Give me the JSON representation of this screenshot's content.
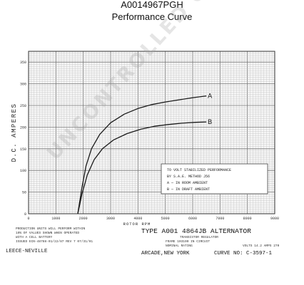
{
  "header": {
    "part_number": "A0014967PGH",
    "subtitle": "Performance Curve"
  },
  "chart_data": {
    "type": "line",
    "title": "",
    "xlabel": "ROTOR RPM",
    "ylabel": "D.C. AMPERES",
    "xlim": [
      0,
      9000
    ],
    "ylim": [
      0,
      375
    ],
    "x_ticks": [
      "0",
      "1000",
      "2000",
      "3000",
      "4000",
      "5000",
      "6000",
      "7000",
      "8000",
      "9000"
    ],
    "y_ticks": [
      "0",
      "50",
      "100",
      "150",
      "200",
      "250",
      "300",
      "350"
    ],
    "grid": true,
    "series": [
      {
        "name": "A",
        "x": [
          1800,
          1950,
          2100,
          2300,
          2600,
          3000,
          3500,
          4000,
          4500,
          5000,
          5500,
          6000,
          6500
        ],
        "y": [
          0,
          60,
          110,
          150,
          183,
          210,
          230,
          243,
          252,
          258,
          263,
          268,
          272
        ]
      },
      {
        "name": "B",
        "x": [
          1800,
          1950,
          2150,
          2400,
          2700,
          3100,
          3600,
          4100,
          4600,
          5100,
          5600,
          6100,
          6500
        ],
        "y": [
          0,
          45,
          90,
          125,
          150,
          170,
          185,
          195,
          202,
          206,
          209,
          211,
          212
        ]
      }
    ],
    "legend_box": [
      "TO VOLT STABILIZED PERFORMANCE",
      "BY S.A.E. METHOD   J56",
      "A — IN ROOM AMBIENT",
      "B — IN DRAFT AMBIENT"
    ]
  },
  "footer": {
    "notes": [
      "PRODUCTION UNITS WILL PERFORM WITHIN",
      "10% OF VALUES SHOWN WHEN OPERATED",
      "WITH A      CELL BATTERY",
      "ISSUED ECN-48788-01/22/87    REV 7 07/31/91"
    ],
    "brand": "LEECE-NEVILLE",
    "type_line": "TYPE   A001 4864JB ALTERNATOR",
    "regulator": "TRANSISTOR REGULATOR",
    "rating": "FRAME 103100    IN CIRCUIT",
    "nominal": "NOMINAL RATING",
    "volts_amps": "VOLTS 14.2   AMPS 270",
    "location": "ARCADE,NEW YORK",
    "curve_no": "CURVE NO: C-3597-1"
  },
  "watermark": "UNCONTROLLED COPY"
}
